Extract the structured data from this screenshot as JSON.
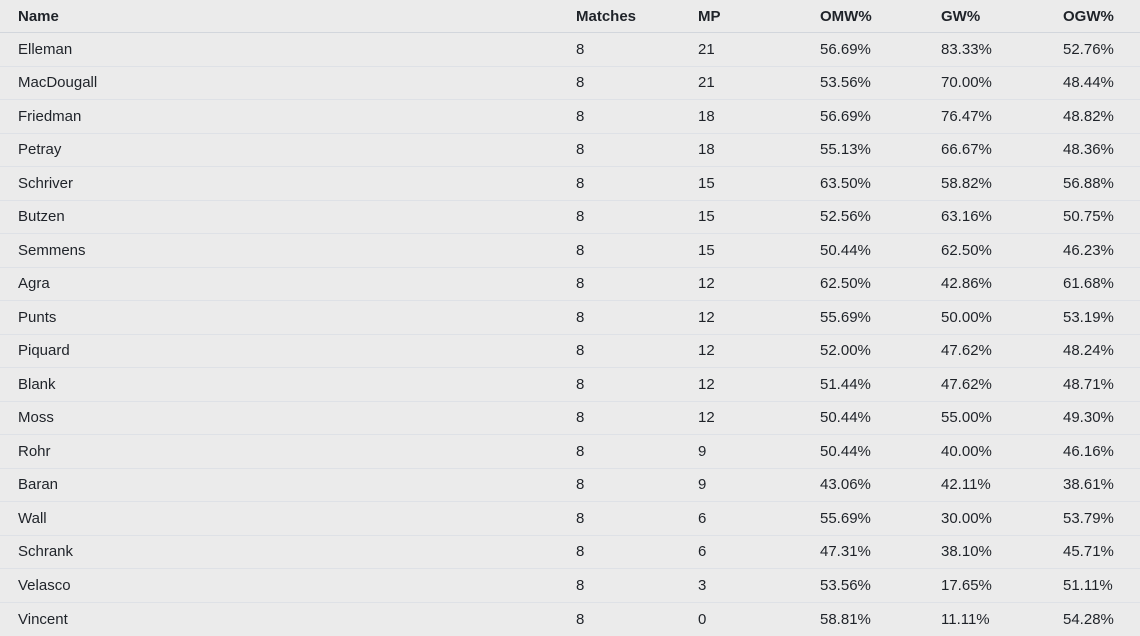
{
  "colors": {
    "background": "#ebebeb",
    "row_divider": "#dee1e6",
    "header_divider": "#d2d6dc",
    "text": "#1f2329"
  },
  "table": {
    "columns": [
      {
        "label": "Name"
      },
      {
        "label": "Matches"
      },
      {
        "label": "MP"
      },
      {
        "label": "OMW%"
      },
      {
        "label": "GW%"
      },
      {
        "label": "OGW%"
      }
    ],
    "rows": [
      {
        "name": "Elleman",
        "matches": "8",
        "mp": "21",
        "omw": "56.69%",
        "gw": "83.33%",
        "ogw": "52.76%"
      },
      {
        "name": "MacDougall",
        "matches": "8",
        "mp": "21",
        "omw": "53.56%",
        "gw": "70.00%",
        "ogw": "48.44%"
      },
      {
        "name": "Friedman",
        "matches": "8",
        "mp": "18",
        "omw": "56.69%",
        "gw": "76.47%",
        "ogw": "48.82%"
      },
      {
        "name": "Petray",
        "matches": "8",
        "mp": "18",
        "omw": "55.13%",
        "gw": "66.67%",
        "ogw": "48.36%"
      },
      {
        "name": "Schriver",
        "matches": "8",
        "mp": "15",
        "omw": "63.50%",
        "gw": "58.82%",
        "ogw": "56.88%"
      },
      {
        "name": "Butzen",
        "matches": "8",
        "mp": "15",
        "omw": "52.56%",
        "gw": "63.16%",
        "ogw": "50.75%"
      },
      {
        "name": "Semmens",
        "matches": "8",
        "mp": "15",
        "omw": "50.44%",
        "gw": "62.50%",
        "ogw": "46.23%"
      },
      {
        "name": "Agra",
        "matches": "8",
        "mp": "12",
        "omw": "62.50%",
        "gw": "42.86%",
        "ogw": "61.68%"
      },
      {
        "name": "Punts",
        "matches": "8",
        "mp": "12",
        "omw": "55.69%",
        "gw": "50.00%",
        "ogw": "53.19%"
      },
      {
        "name": "Piquard",
        "matches": "8",
        "mp": "12",
        "omw": "52.00%",
        "gw": "47.62%",
        "ogw": "48.24%"
      },
      {
        "name": "Blank",
        "matches": "8",
        "mp": "12",
        "omw": "51.44%",
        "gw": "47.62%",
        "ogw": "48.71%"
      },
      {
        "name": "Moss",
        "matches": "8",
        "mp": "12",
        "omw": "50.44%",
        "gw": "55.00%",
        "ogw": "49.30%"
      },
      {
        "name": "Rohr",
        "matches": "8",
        "mp": "9",
        "omw": "50.44%",
        "gw": "40.00%",
        "ogw": "46.16%"
      },
      {
        "name": "Baran",
        "matches": "8",
        "mp": "9",
        "omw": "43.06%",
        "gw": "42.11%",
        "ogw": "38.61%"
      },
      {
        "name": "Wall",
        "matches": "8",
        "mp": "6",
        "omw": "55.69%",
        "gw": "30.00%",
        "ogw": "53.79%"
      },
      {
        "name": "Schrank",
        "matches": "8",
        "mp": "6",
        "omw": "47.31%",
        "gw": "38.10%",
        "ogw": "45.71%"
      },
      {
        "name": "Velasco",
        "matches": "8",
        "mp": "3",
        "omw": "53.56%",
        "gw": "17.65%",
        "ogw": "51.11%"
      },
      {
        "name": "Vincent",
        "matches": "8",
        "mp": "0",
        "omw": "58.81%",
        "gw": "11.11%",
        "ogw": "54.28%"
      }
    ]
  }
}
